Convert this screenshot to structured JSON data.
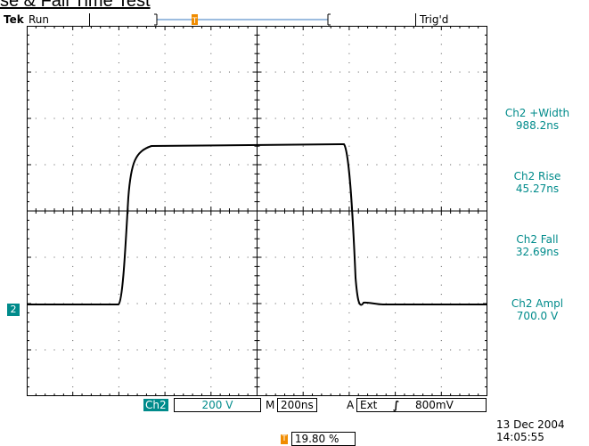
{
  "title": "se & Fall Time Test",
  "header": {
    "brand": "Tek",
    "state": "Run",
    "trigger_marker": "T",
    "trigger_status": "Trig'd"
  },
  "measurements": [
    {
      "label": "Ch2 +Width",
      "value": "988.2ns"
    },
    {
      "label": "Ch2 Rise",
      "value": "45.27ns"
    },
    {
      "label": "Ch2 Fall",
      "value": "32.69ns"
    },
    {
      "label": "Ch2 Ampl",
      "value": "700.0 V"
    }
  ],
  "channel_marker": "2",
  "bottom_bar": {
    "channel": "Ch2",
    "volts_div": "200 V",
    "timebase_prefix": "M",
    "timebase": "200ns",
    "trigger_prefix": "A",
    "trigger_source": "Ext",
    "trigger_slope": "∫",
    "trigger_level": "800mV",
    "trigger_position_marker": "T",
    "trigger_position": "19.80 %"
  },
  "timestamp": {
    "date": "13 Dec  2004",
    "time": "14:05:55"
  },
  "colors": {
    "trigger_orange": "#f08c00",
    "measure_cyan": "#008b8b",
    "trace": "#000000"
  }
}
